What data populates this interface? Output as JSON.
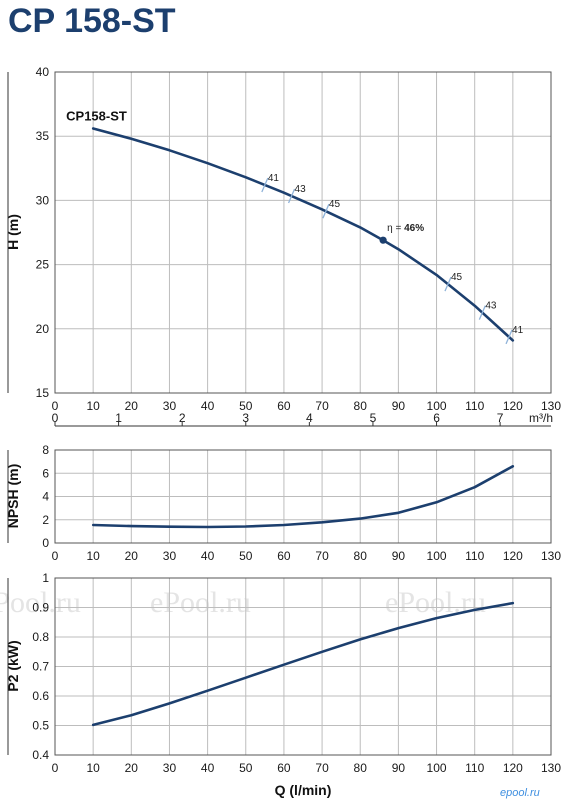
{
  "title": "CP 158-ST",
  "colors": {
    "curve": "#1c3f6e",
    "grid": "#bdbdbd",
    "eff_tick": "#8fb3d9",
    "title": "#1c3f6e"
  },
  "watermarks": [
    "ePool.ru",
    "ePool.ru",
    "ePool.ru"
  ],
  "brand_mark": "epool.ru",
  "chart_data": [
    {
      "type": "line",
      "name": "H",
      "ylabel": "H (m)",
      "xlim": [
        0,
        130
      ],
      "ylim": [
        15,
        40
      ],
      "x_ticks": [
        0,
        10,
        20,
        30,
        40,
        50,
        60,
        70,
        80,
        90,
        100,
        110,
        120,
        130
      ],
      "y_ticks": [
        15,
        20,
        25,
        30,
        35,
        40
      ],
      "secondary_x": {
        "unit": "m³/h",
        "ticks": [
          0,
          1,
          2,
          3,
          4,
          5,
          6,
          7
        ]
      },
      "series": [
        {
          "name": "CP158-ST",
          "x": [
            10,
            20,
            30,
            40,
            50,
            60,
            70,
            80,
            86,
            90,
            100,
            110,
            120
          ],
          "y": [
            35.6,
            34.8,
            33.9,
            32.9,
            31.8,
            30.6,
            29.3,
            27.9,
            26.9,
            26.2,
            24.2,
            21.8,
            19.1
          ]
        }
      ],
      "efficiency_marks": [
        {
          "q": 55,
          "label": "41"
        },
        {
          "q": 62,
          "label": "43"
        },
        {
          "q": 71,
          "label": "45"
        },
        {
          "q": 103,
          "label": "45"
        },
        {
          "q": 112,
          "label": "43"
        },
        {
          "q": 119,
          "label": "41"
        }
      ],
      "best_efficiency": {
        "q": 86,
        "label_prefix": "η = ",
        "label_value": "46%"
      }
    },
    {
      "type": "line",
      "name": "NPSH",
      "ylabel": "NPSH (m)",
      "xlim": [
        0,
        130
      ],
      "ylim": [
        0,
        8
      ],
      "x_ticks": [
        0,
        10,
        20,
        30,
        40,
        50,
        60,
        70,
        80,
        90,
        100,
        110,
        120,
        130
      ],
      "y_ticks": [
        0,
        2,
        4,
        6,
        8
      ],
      "series": [
        {
          "name": "",
          "x": [
            10,
            20,
            30,
            40,
            50,
            60,
            70,
            80,
            90,
            100,
            110,
            120
          ],
          "y": [
            1.55,
            1.45,
            1.4,
            1.38,
            1.42,
            1.55,
            1.78,
            2.1,
            2.6,
            3.5,
            4.8,
            6.6
          ]
        }
      ]
    },
    {
      "type": "line",
      "name": "P2",
      "ylabel": "P2 (kW)",
      "xlabel": "Q (l/min)",
      "xlim": [
        0,
        130
      ],
      "ylim": [
        0.4,
        1
      ],
      "x_ticks": [
        0,
        10,
        20,
        30,
        40,
        50,
        60,
        70,
        80,
        90,
        100,
        110,
        120,
        130
      ],
      "y_ticks": [
        "0.4",
        "0.5",
        "0.6",
        "0.7",
        "0.8",
        "0.9",
        "1"
      ],
      "series": [
        {
          "name": "",
          "x": [
            10,
            20,
            30,
            40,
            50,
            60,
            70,
            80,
            90,
            100,
            110,
            120
          ],
          "y": [
            0.502,
            0.535,
            0.575,
            0.618,
            0.662,
            0.706,
            0.75,
            0.792,
            0.83,
            0.864,
            0.892,
            0.915
          ]
        }
      ]
    }
  ]
}
